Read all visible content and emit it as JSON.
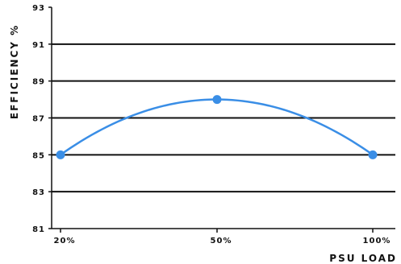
{
  "chart_data": {
    "type": "line",
    "title": "",
    "xlabel": "PSU LOAD",
    "ylabel": "EFFICIENCY %",
    "categories": [
      "20%",
      "50%",
      "100%"
    ],
    "series": [
      {
        "values": [
          85.0,
          88.0,
          85.0
        ],
        "color": "#3a8ee6"
      }
    ],
    "ylim": [
      81,
      93
    ],
    "yticks": [
      "81",
      "83",
      "85",
      "87",
      "89",
      "91",
      "93"
    ],
    "ytick_values": [
      81,
      83,
      85,
      87,
      89,
      91,
      93
    ],
    "smooth": true,
    "grid": "horizontal",
    "legend": "none"
  }
}
